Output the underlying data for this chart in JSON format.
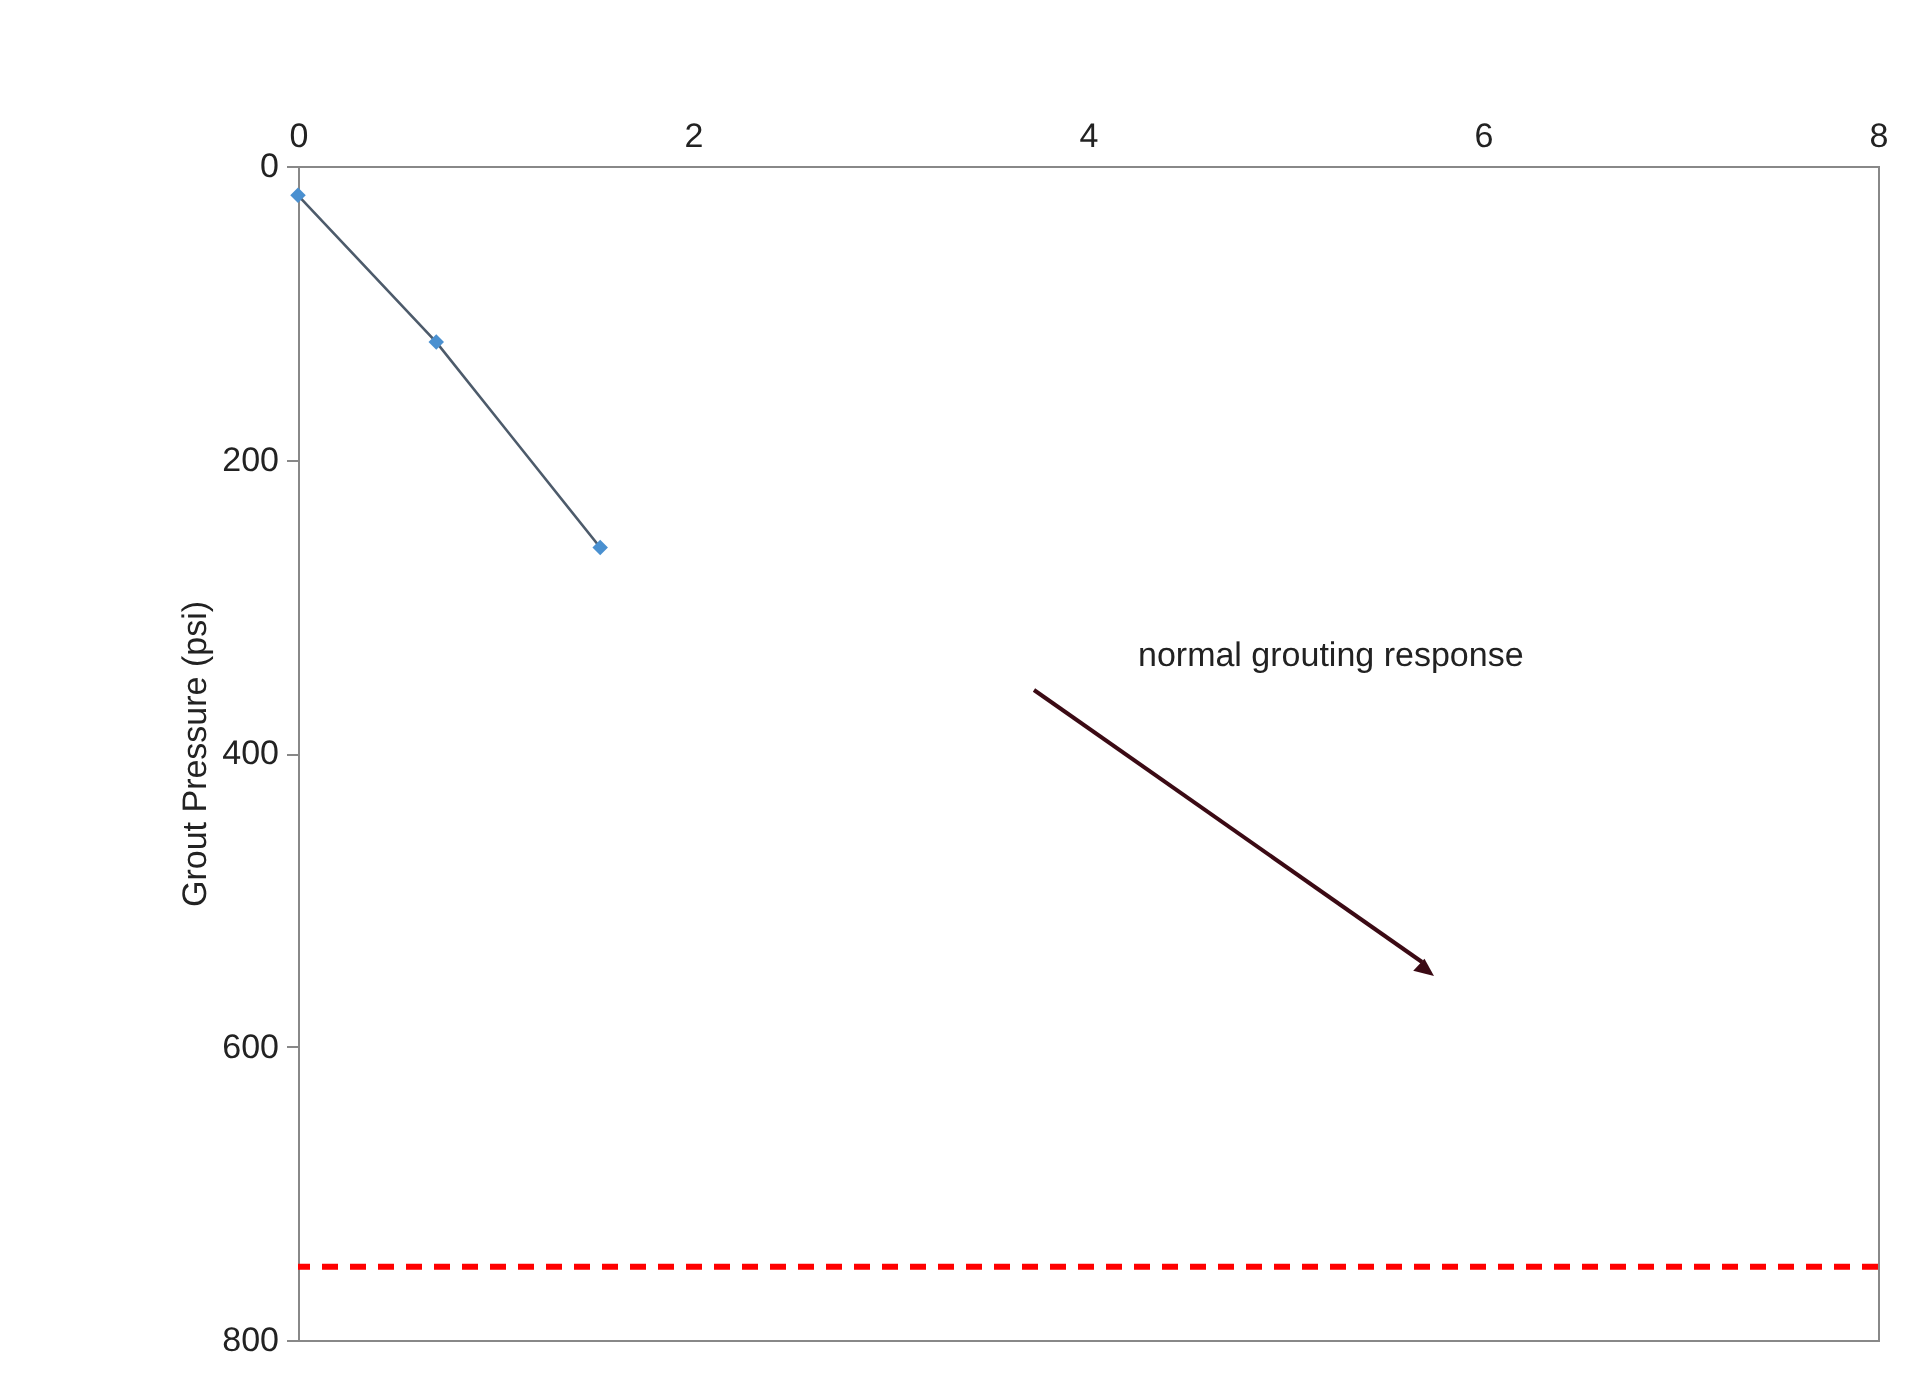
{
  "chart_data": {
    "type": "line",
    "ylabel": "Grout Pressure (psi)",
    "x": [
      0,
      0.7,
      1.53
    ],
    "series": [
      {
        "color": "#4a90d0",
        "values": [
          20,
          120,
          260
        ]
      }
    ],
    "xlim": [
      0,
      8
    ],
    "xticks": [
      0,
      2,
      4,
      6,
      8
    ],
    "ylim": [
      800,
      0
    ],
    "yticks": [
      0,
      200,
      400,
      600,
      800
    ],
    "marker": "diamond",
    "line_style": "solid",
    "grid": false,
    "ref_lines": [
      {
        "axis": "y",
        "value": 750,
        "color": "#ff0000",
        "line_style": "dashed"
      }
    ],
    "annotations": [
      "normal grouting response"
    ]
  }
}
